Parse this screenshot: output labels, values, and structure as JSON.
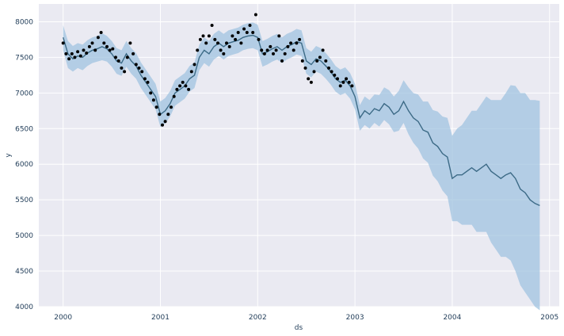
{
  "chart_data": {
    "type": "line",
    "xlabel": "ds",
    "ylabel": "y",
    "xlim": [
      1999.75,
      2005.1
    ],
    "ylim": [
      4000,
      8250
    ],
    "x_ticks": [
      2000,
      2001,
      2002,
      2003,
      2004,
      2005
    ],
    "x_tick_labels": [
      "2000",
      "2001",
      "2002",
      "2003",
      "2004",
      "2005"
    ],
    "y_ticks": [
      4000,
      4500,
      5000,
      5500,
      6000,
      6500,
      7000,
      7500,
      8000
    ],
    "y_tick_labels": [
      "4000",
      "4500",
      "5000",
      "5500",
      "6000",
      "6500",
      "7000",
      "7500",
      "8000"
    ],
    "grid": true,
    "colors": {
      "background": "#eaeaf2",
      "grid": "#ffffff",
      "forecast_line": "#3c6a86",
      "band": "#9ec2df",
      "points": "#000000"
    },
    "series": [
      {
        "role": "forecast",
        "x": [
          2000.0,
          2000.05,
          2000.1,
          2000.15,
          2000.2,
          2000.25,
          2000.3,
          2000.35,
          2000.4,
          2000.45,
          2000.5,
          2000.55,
          2000.6,
          2000.65,
          2000.7,
          2000.75,
          2000.8,
          2000.85,
          2000.9,
          2000.95,
          2001.0,
          2001.05,
          2001.1,
          2001.15,
          2001.2,
          2001.25,
          2001.3,
          2001.35,
          2001.4,
          2001.45,
          2001.5,
          2001.55,
          2001.6,
          2001.65,
          2001.7,
          2001.75,
          2001.8,
          2001.85,
          2001.9,
          2001.95,
          2002.0,
          2002.05,
          2002.1,
          2002.15,
          2002.2,
          2002.25,
          2002.3,
          2002.35,
          2002.4,
          2002.45,
          2002.5,
          2002.55,
          2002.6,
          2002.65,
          2002.7,
          2002.75,
          2002.8,
          2002.85,
          2002.9,
          2002.95,
          2003.0,
          2003.05,
          2003.1,
          2003.15,
          2003.2,
          2003.25,
          2003.3,
          2003.35,
          2003.4,
          2003.45,
          2003.5,
          2003.55,
          2003.6,
          2003.65,
          2003.7,
          2003.75,
          2003.8,
          2003.85,
          2003.9,
          2003.95,
          2004.0,
          2004.05,
          2004.1,
          2004.15,
          2004.2,
          2004.25,
          2004.3,
          2004.35,
          2004.4,
          2004.45,
          2004.5,
          2004.55,
          2004.6,
          2004.65,
          2004.7,
          2004.75,
          2004.8,
          2004.85,
          2004.9
        ],
        "values": [
          7780,
          7550,
          7480,
          7520,
          7500,
          7560,
          7600,
          7620,
          7650,
          7620,
          7550,
          7450,
          7420,
          7550,
          7450,
          7380,
          7250,
          7150,
          7050,
          6950,
          6700,
          6750,
          6850,
          7000,
          7050,
          7100,
          7200,
          7250,
          7500,
          7600,
          7550,
          7650,
          7700,
          7650,
          7700,
          7720,
          7740,
          7780,
          7800,
          7810,
          7780,
          7550,
          7580,
          7620,
          7650,
          7600,
          7650,
          7680,
          7720,
          7700,
          7450,
          7400,
          7480,
          7450,
          7380,
          7300,
          7200,
          7150,
          7180,
          7100,
          6950,
          6650,
          6750,
          6700,
          6780,
          6750,
          6850,
          6800,
          6700,
          6750,
          6880,
          6750,
          6650,
          6600,
          6480,
          6450,
          6300,
          6250,
          6150,
          6100,
          5800,
          5850,
          5850,
          5900,
          5950,
          5900,
          5950,
          6000,
          5900,
          5850,
          5800,
          5850,
          5880,
          5800,
          5650,
          5600,
          5500,
          5450,
          5420
        ],
        "lower": [
          7600,
          7350,
          7300,
          7350,
          7320,
          7380,
          7420,
          7440,
          7460,
          7440,
          7370,
          7270,
          7240,
          7370,
          7270,
          7200,
          7070,
          6970,
          6870,
          6770,
          6520,
          6570,
          6670,
          6820,
          6870,
          6920,
          7020,
          7070,
          7320,
          7420,
          7370,
          7470,
          7520,
          7470,
          7520,
          7540,
          7560,
          7600,
          7620,
          7630,
          7600,
          7370,
          7400,
          7440,
          7470,
          7420,
          7470,
          7500,
          7540,
          7520,
          7270,
          7220,
          7300,
          7270,
          7200,
          7120,
          7020,
          6970,
          7000,
          6920,
          6770,
          6470,
          6550,
          6500,
          6580,
          6530,
          6620,
          6560,
          6450,
          6470,
          6580,
          6420,
          6300,
          6220,
          6080,
          6020,
          5840,
          5760,
          5630,
          5550,
          5200,
          5200,
          5150,
          5150,
          5150,
          5050,
          5050,
          5050,
          4900,
          4800,
          4700,
          4700,
          4650,
          4500,
          4300,
          4200,
          4100,
          4000,
          3950
        ],
        "upper": [
          7950,
          7730,
          7660,
          7700,
          7680,
          7740,
          7780,
          7800,
          7840,
          7800,
          7730,
          7630,
          7600,
          7730,
          7630,
          7560,
          7430,
          7330,
          7230,
          7130,
          6880,
          6930,
          7030,
          7180,
          7230,
          7280,
          7380,
          7430,
          7680,
          7780,
          7730,
          7830,
          7880,
          7830,
          7880,
          7900,
          7920,
          7960,
          7980,
          7990,
          7960,
          7730,
          7760,
          7800,
          7830,
          7780,
          7830,
          7860,
          7900,
          7880,
          7630,
          7580,
          7660,
          7630,
          7560,
          7480,
          7380,
          7330,
          7360,
          7280,
          7130,
          6830,
          6950,
          6900,
          6980,
          6970,
          7080,
          7040,
          6950,
          7030,
          7180,
          7080,
          7000,
          6980,
          6880,
          6880,
          6760,
          6740,
          6670,
          6650,
          6400,
          6500,
          6550,
          6650,
          6750,
          6750,
          6850,
          6950,
          6900,
          6900,
          6900,
          7000,
          7110,
          7100,
          7000,
          7000,
          6900,
          6900,
          6890
        ]
      },
      {
        "role": "observed",
        "x": [
          2000.0,
          2000.03,
          2000.06,
          2000.09,
          2000.12,
          2000.15,
          2000.18,
          2000.21,
          2000.24,
          2000.27,
          2000.3,
          2000.33,
          2000.36,
          2000.39,
          2000.42,
          2000.45,
          2000.48,
          2000.51,
          2000.54,
          2000.57,
          2000.6,
          2000.63,
          2000.66,
          2000.69,
          2000.72,
          2000.75,
          2000.78,
          2000.81,
          2000.84,
          2000.87,
          2000.9,
          2000.93,
          2000.96,
          2000.99,
          2001.02,
          2001.05,
          2001.08,
          2001.11,
          2001.14,
          2001.17,
          2001.2,
          2001.23,
          2001.26,
          2001.29,
          2001.32,
          2001.35,
          2001.38,
          2001.41,
          2001.44,
          2001.47,
          2001.5,
          2001.53,
          2001.56,
          2001.59,
          2001.62,
          2001.65,
          2001.68,
          2001.71,
          2001.74,
          2001.77,
          2001.8,
          2001.83,
          2001.86,
          2001.89,
          2001.92,
          2001.95,
          2001.98,
          2002.01,
          2002.04,
          2002.07,
          2002.1,
          2002.13,
          2002.16,
          2002.19,
          2002.22,
          2002.25,
          2002.28,
          2002.31,
          2002.34,
          2002.37,
          2002.4,
          2002.43,
          2002.46,
          2002.49,
          2002.52,
          2002.55,
          2002.58,
          2002.61,
          2002.64,
          2002.67,
          2002.7,
          2002.73,
          2002.76,
          2002.79,
          2002.82,
          2002.85,
          2002.88,
          2002.91,
          2002.94,
          2002.97
        ],
        "values": [
          7700,
          7550,
          7480,
          7550,
          7500,
          7580,
          7520,
          7600,
          7560,
          7650,
          7700,
          7600,
          7780,
          7850,
          7700,
          7650,
          7600,
          7620,
          7500,
          7450,
          7350,
          7300,
          7500,
          7700,
          7550,
          7400,
          7350,
          7300,
          7200,
          7150,
          7000,
          6900,
          6800,
          6700,
          6550,
          6600,
          6700,
          6800,
          6950,
          7050,
          7100,
          7150,
          7100,
          7050,
          7300,
          7400,
          7600,
          7750,
          7800,
          7700,
          7800,
          7950,
          7750,
          7700,
          7600,
          7550,
          7700,
          7650,
          7800,
          7750,
          7850,
          7700,
          7900,
          7850,
          7950,
          7850,
          8100,
          7750,
          7600,
          7550,
          7600,
          7650,
          7550,
          7600,
          7800,
          7450,
          7550,
          7650,
          7700,
          7600,
          7700,
          7750,
          7450,
          7350,
          7200,
          7150,
          7300,
          7450,
          7500,
          7600,
          7450,
          7350,
          7300,
          7250,
          7200,
          7100,
          7150,
          7200,
          7150,
          7100
        ]
      }
    ]
  }
}
